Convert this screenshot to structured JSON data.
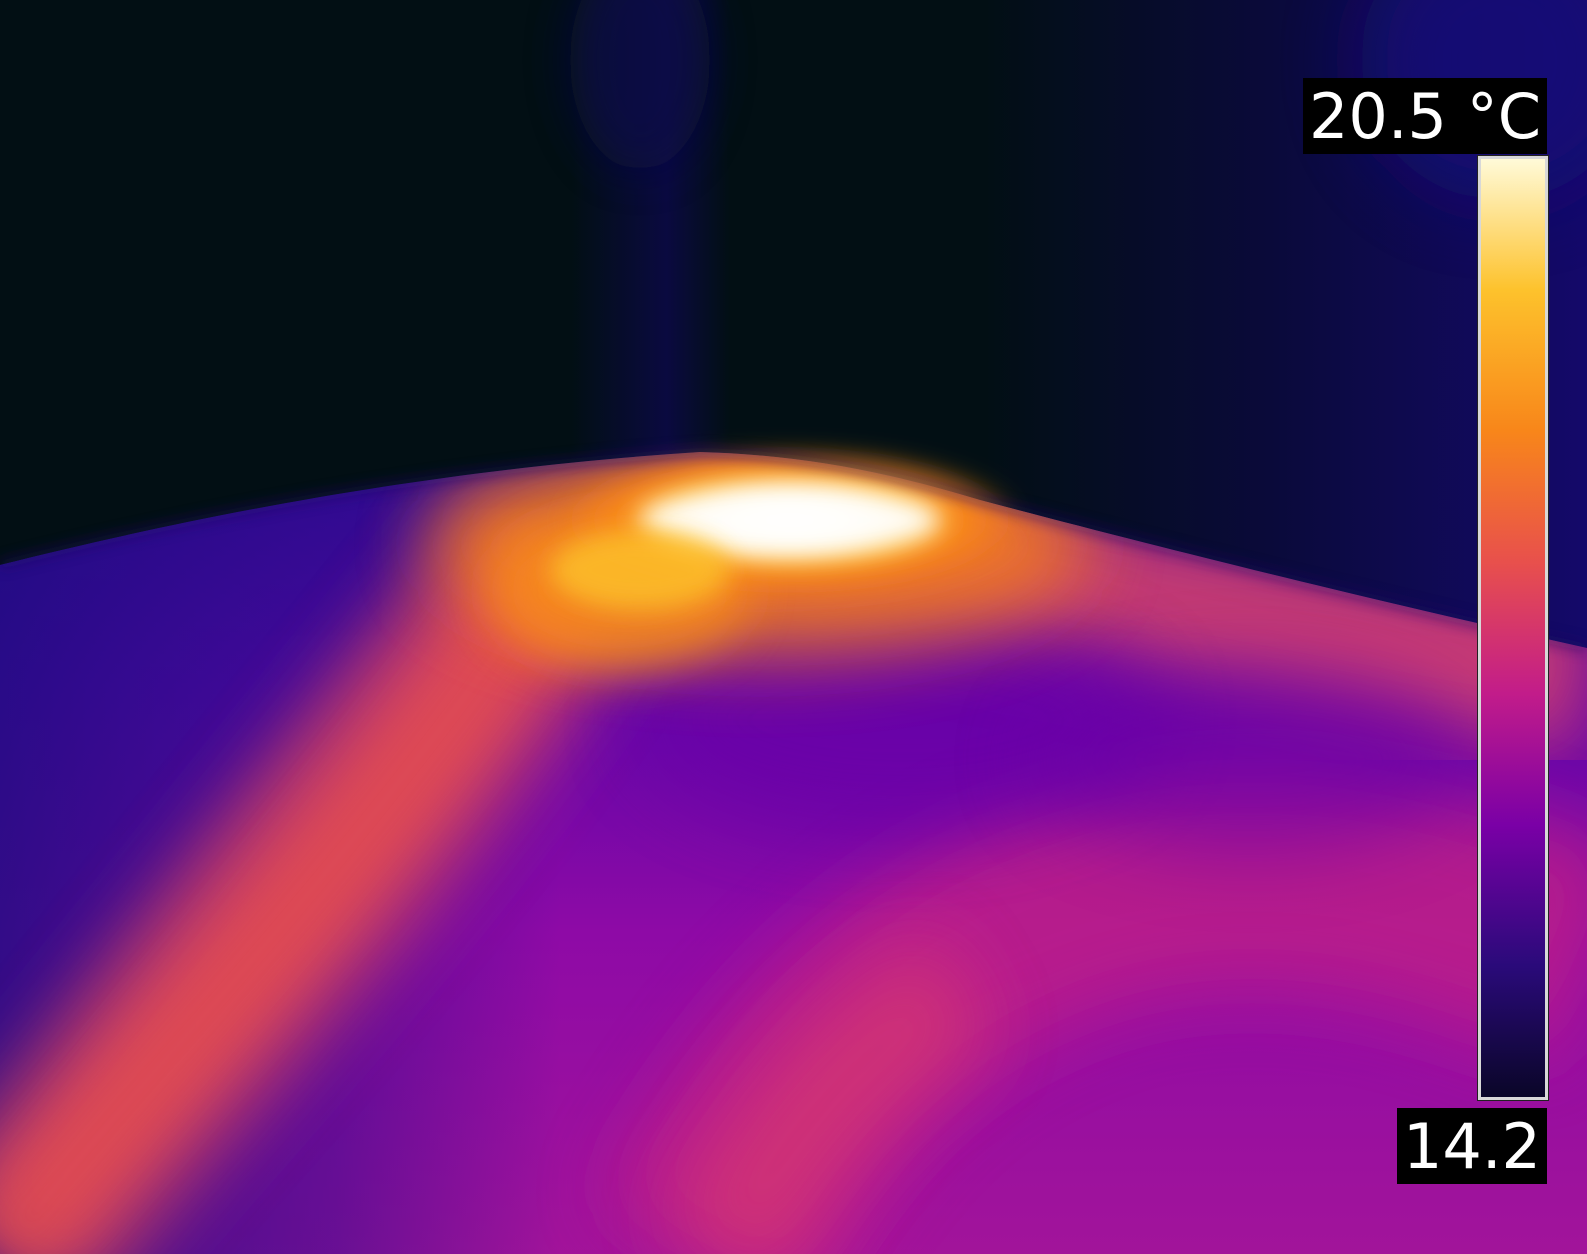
{
  "palette": {
    "name": "iron",
    "stops": [
      "#0a0628",
      "#2a0a7a",
      "#7a00a6",
      "#c21c8a",
      "#e8504c",
      "#f8861a",
      "#fdc22c",
      "#fffad8"
    ],
    "background": "#020f14"
  },
  "scale": {
    "max_label": "20.5 °C",
    "min_label": "14.2",
    "max_value": 20.5,
    "min_value": 14.2,
    "unit": "°C"
  }
}
